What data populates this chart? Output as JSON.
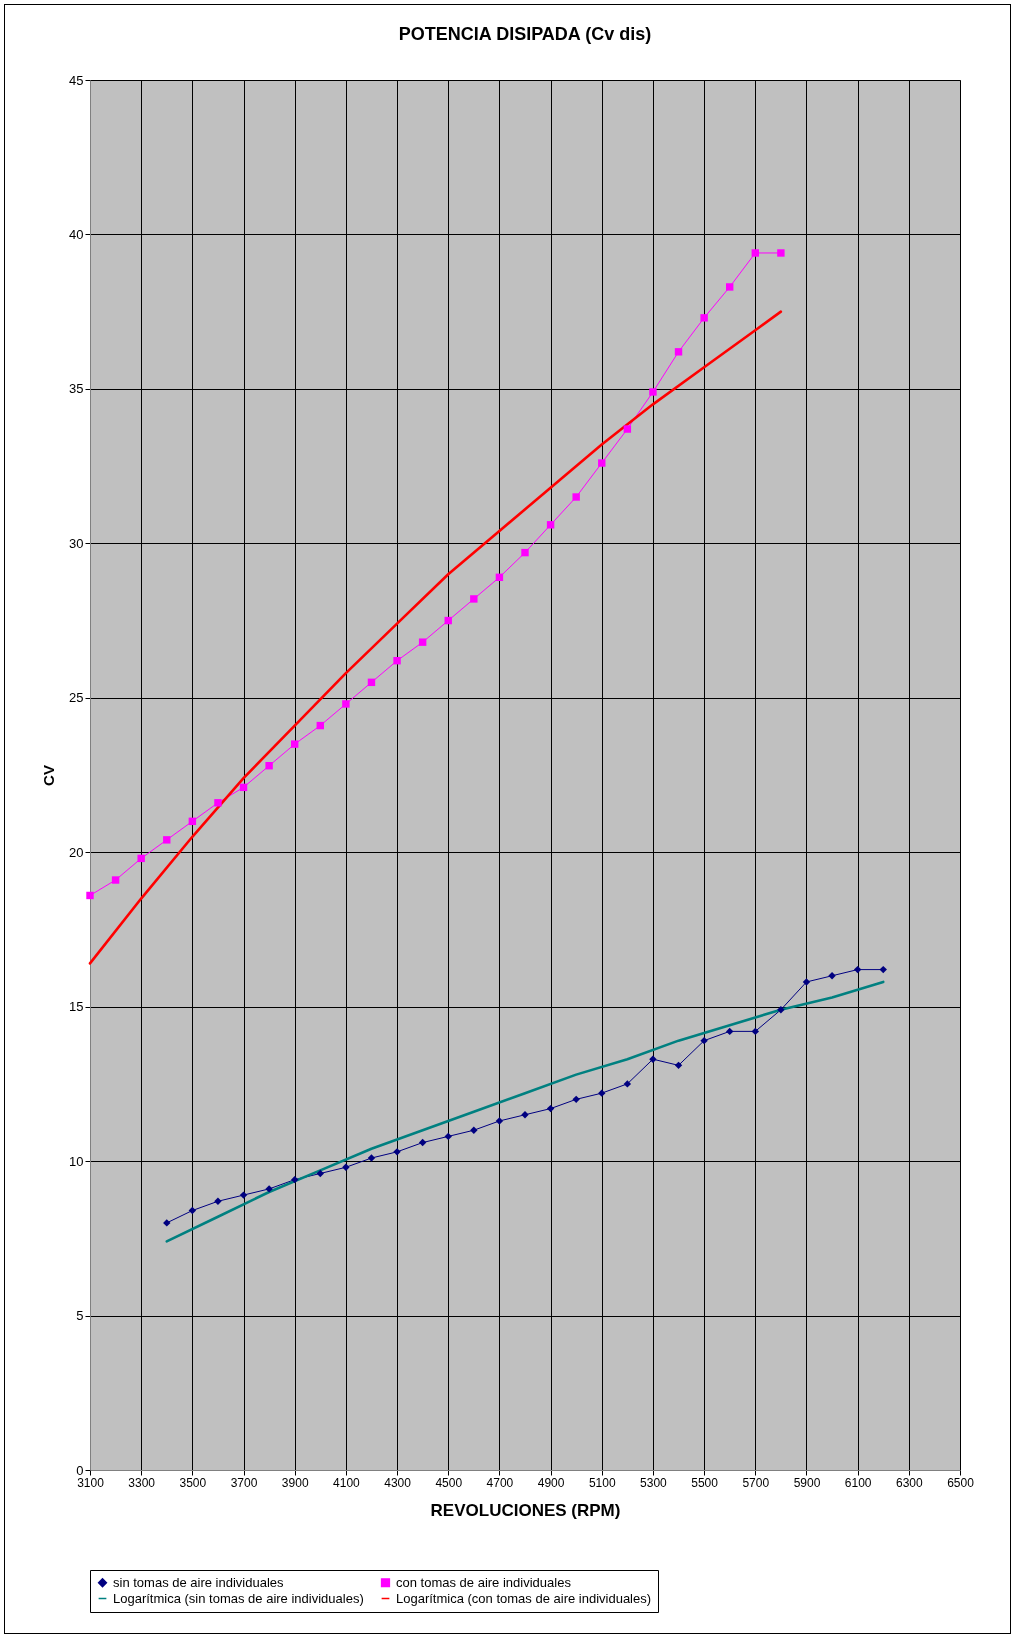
{
  "chart_data": {
    "type": "line",
    "title": "POTENCIA DISIPADA (Cv dis)",
    "xlabel": "REVOLUCIONES (RPM)",
    "ylabel": "CV",
    "xlim": [
      3100,
      6500
    ],
    "xticks": [
      3100,
      3300,
      3500,
      3700,
      3900,
      4100,
      4300,
      4500,
      4700,
      4900,
      5100,
      5300,
      5500,
      5700,
      5900,
      6100,
      6300,
      6500
    ],
    "ylim": [
      0,
      45
    ],
    "yticks": [
      0,
      5,
      10,
      15,
      20,
      25,
      30,
      35,
      40,
      45
    ],
    "grid": true,
    "legend": "bottom",
    "series": [
      {
        "name": "sin tomas de aire individuales",
        "color": "#000080",
        "marker": "diamond",
        "x": [
          3400,
          3500,
          3600,
          3700,
          3800,
          3900,
          4000,
          4100,
          4200,
          4300,
          4400,
          4500,
          4600,
          4700,
          4800,
          4900,
          5000,
          5100,
          5200,
          5300,
          5400,
          5500,
          5600,
          5700,
          5800,
          5900,
          6000,
          6100,
          6200
        ],
        "values": [
          8.0,
          8.4,
          8.7,
          8.9,
          9.1,
          9.4,
          9.6,
          9.8,
          10.1,
          10.3,
          10.6,
          10.8,
          11.0,
          11.3,
          11.5,
          11.7,
          12.0,
          12.2,
          12.5,
          13.3,
          13.1,
          13.9,
          14.2,
          14.2,
          14.9,
          15.8,
          16.0,
          16.2,
          16.2
        ]
      },
      {
        "name": "con tomas de aire individuales",
        "color": "#ff00ff",
        "marker": "square",
        "x": [
          3100,
          3200,
          3300,
          3400,
          3500,
          3600,
          3700,
          3800,
          3900,
          4000,
          4100,
          4200,
          4300,
          4400,
          4500,
          4600,
          4700,
          4800,
          4900,
          5000,
          5100,
          5200,
          5300,
          5400,
          5500,
          5600,
          5700,
          5800
        ],
        "values": [
          18.6,
          19.1,
          19.8,
          20.4,
          21.0,
          21.6,
          22.1,
          22.8,
          23.5,
          24.1,
          24.8,
          25.5,
          26.2,
          26.8,
          27.5,
          28.2,
          28.9,
          29.7,
          30.6,
          31.5,
          32.6,
          33.7,
          34.9,
          36.2,
          37.3,
          38.3,
          39.4,
          39.4
        ]
      },
      {
        "name": "Logarítmica (sin tomas de aire individuales)",
        "color": "#008080",
        "marker": "none",
        "type": "line",
        "x": [
          3400,
          3600,
          3800,
          4000,
          4200,
          4400,
          4600,
          4800,
          5000,
          5200,
          5400,
          5600,
          5800,
          6000,
          6200
        ],
        "values": [
          7.4,
          8.2,
          9.0,
          9.7,
          10.4,
          11.0,
          11.6,
          12.2,
          12.8,
          13.3,
          13.9,
          14.4,
          14.9,
          15.3,
          15.8
        ]
      },
      {
        "name": "Logarítmica (con tomas de aire individuales)",
        "color": "#ff0000",
        "marker": "none",
        "type": "line",
        "x": [
          3100,
          3300,
          3500,
          3700,
          3900,
          4100,
          4300,
          4500,
          4700,
          4900,
          5100,
          5300,
          5500,
          5700,
          5800
        ],
        "values": [
          16.4,
          18.5,
          20.5,
          22.4,
          24.1,
          25.8,
          27.4,
          29.0,
          30.4,
          31.8,
          33.2,
          34.5,
          35.7,
          36.9,
          37.5
        ]
      }
    ]
  }
}
